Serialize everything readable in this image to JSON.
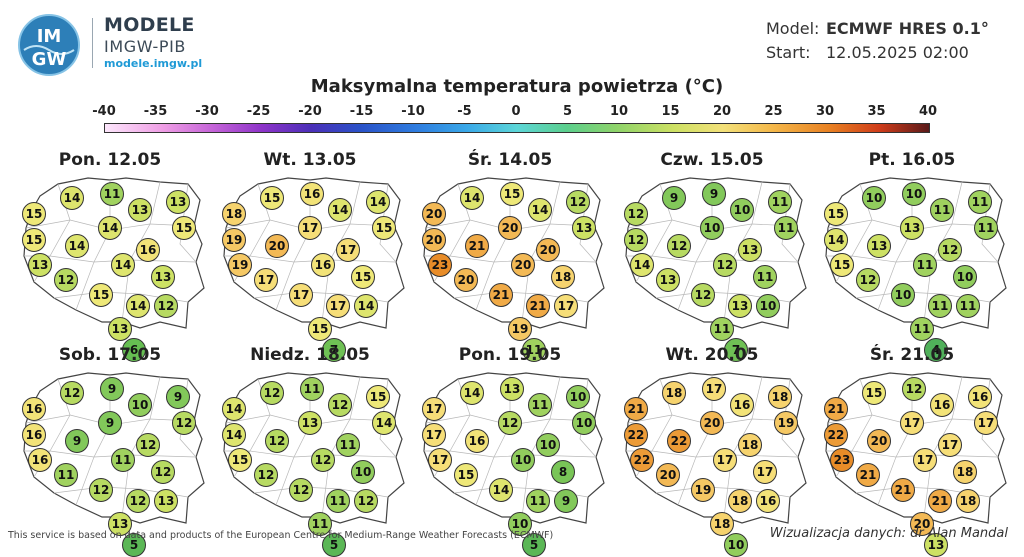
{
  "header": {
    "brand_name": "MODELE",
    "brand_sub": "IMGW-PIB",
    "brand_url": "modele.imgw.pl",
    "logo_text_top": "IM",
    "logo_text_bottom": "GW",
    "logo_icon": "imgw-logo-icon",
    "model_label": "Model:",
    "model_value": "ECMWF HRES 0.1°",
    "start_label": "Start:",
    "start_value": "12.05.2025 02:00"
  },
  "title": "Maksymalna temperatura powietrza (°C)",
  "scale": {
    "ticks": [
      -40,
      -35,
      -30,
      -25,
      -20,
      -15,
      -10,
      -5,
      0,
      5,
      10,
      15,
      20,
      25,
      30,
      35,
      40
    ],
    "min": -40,
    "max": 40
  },
  "days": [
    {
      "label": "Pon. 12.05",
      "temps": [
        14,
        11,
        15,
        13,
        13,
        14,
        15,
        15,
        14,
        16,
        13,
        14,
        13,
        12,
        15,
        14,
        13,
        12,
        6
      ]
    },
    {
      "label": "Wt. 13.05",
      "temps": [
        15,
        16,
        18,
        14,
        14,
        17,
        15,
        19,
        20,
        17,
        19,
        16,
        15,
        17,
        17,
        17,
        15,
        14,
        7
      ]
    },
    {
      "label": "Śr. 14.05",
      "temps": [
        14,
        15,
        20,
        14,
        12,
        20,
        13,
        20,
        21,
        20,
        23,
        20,
        18,
        20,
        21,
        21,
        19,
        17,
        11
      ]
    },
    {
      "label": "Czw. 15.05",
      "temps": [
        9,
        9,
        12,
        10,
        11,
        10,
        11,
        12,
        12,
        13,
        14,
        12,
        11,
        13,
        12,
        13,
        11,
        10,
        7
      ]
    },
    {
      "label": "Pt. 16.05",
      "temps": [
        10,
        10,
        15,
        11,
        11,
        13,
        11,
        14,
        13,
        12,
        15,
        11,
        10,
        12,
        10,
        11,
        11,
        11,
        4
      ]
    },
    {
      "label": "Sob. 17.05",
      "temps": [
        12,
        9,
        16,
        10,
        9,
        9,
        12,
        16,
        9,
        12,
        16,
        11,
        12,
        11,
        12,
        12,
        13,
        13,
        5
      ]
    },
    {
      "label": "Niedz. 18.05",
      "temps": [
        12,
        11,
        14,
        12,
        15,
        13,
        14,
        14,
        12,
        11,
        15,
        12,
        10,
        12,
        12,
        11,
        11,
        12,
        5
      ]
    },
    {
      "label": "Pon. 19.05",
      "temps": [
        14,
        13,
        17,
        11,
        10,
        12,
        10,
        17,
        16,
        10,
        17,
        10,
        8,
        15,
        14,
        11,
        10,
        9,
        5
      ]
    },
    {
      "label": "Wt. 20.05",
      "temps": [
        18,
        17,
        21,
        16,
        18,
        20,
        19,
        22,
        22,
        18,
        22,
        17,
        17,
        20,
        19,
        18,
        18,
        16,
        10
      ]
    },
    {
      "label": "Śr. 21.05",
      "temps": [
        15,
        12,
        21,
        16,
        16,
        17,
        17,
        22,
        20,
        17,
        23,
        17,
        18,
        21,
        21,
        21,
        20,
        18,
        13
      ]
    }
  ],
  "footer": {
    "note": "This service is based on data and products of the European Centre for Medium-Range Weather Forecasts (ECMWF)",
    "credit": "Wizualizacja danych: dr Alan Mandal"
  }
}
